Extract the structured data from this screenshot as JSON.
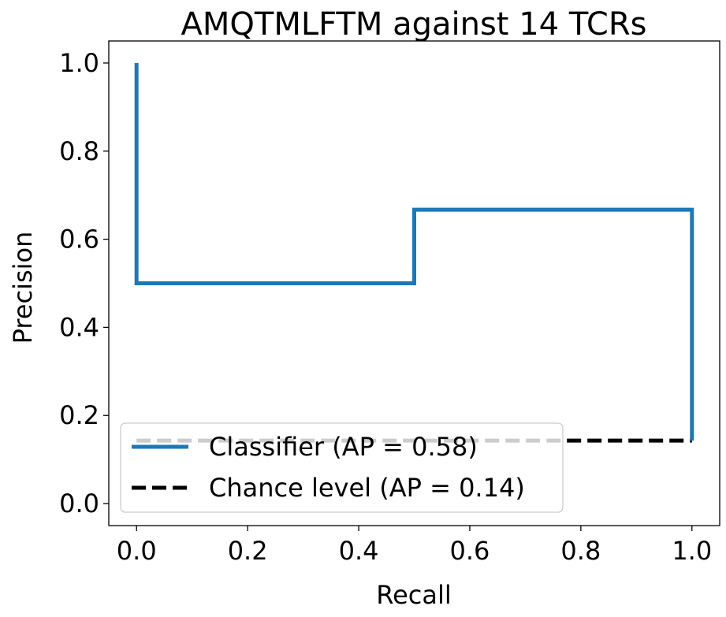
{
  "chart_data": {
    "type": "line",
    "title": "AMQTMLFTM against 14 TCRs",
    "xlabel": "Recall",
    "ylabel": "Precision",
    "xlim": [
      -0.05,
      1.05
    ],
    "ylim": [
      -0.05,
      1.05
    ],
    "xticks": [
      0.0,
      0.2,
      0.4,
      0.6,
      0.8,
      1.0
    ],
    "xtick_labels": [
      "0.0",
      "0.2",
      "0.4",
      "0.6",
      "0.8",
      "1.0"
    ],
    "yticks": [
      0.0,
      0.2,
      0.4,
      0.6,
      0.8,
      1.0
    ],
    "ytick_labels": [
      "0.0",
      "0.2",
      "0.4",
      "0.6",
      "0.8",
      "1.0"
    ],
    "grid": false,
    "legend_position": "lower-left",
    "series": [
      {
        "name": "Classifier (AP = 0.58)",
        "color": "#1f77b4",
        "style": "solid",
        "drawstyle": "steps-post",
        "x": [
          0.0,
          0.0,
          0.5,
          0.5,
          1.0,
          1.0
        ],
        "y": [
          1.0,
          0.5,
          0.5,
          0.667,
          0.667,
          0.143
        ]
      },
      {
        "name": "Chance level (AP = 0.14)",
        "color": "#000000",
        "style": "dashed",
        "x": [
          0.0,
          1.0
        ],
        "y": [
          0.143,
          0.143
        ]
      }
    ]
  }
}
